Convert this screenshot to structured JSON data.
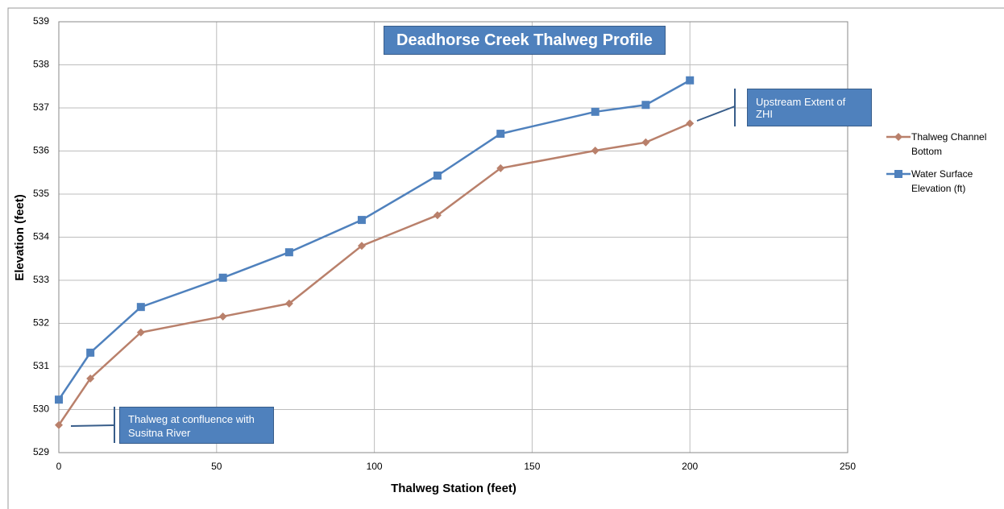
{
  "chart_data": {
    "type": "line",
    "title": "Deadhorse Creek Thalweg Profile",
    "xlabel": "Thalweg Station (feet)",
    "ylabel": "Elevation (feet)",
    "x": [
      0,
      10,
      26,
      52,
      73,
      96,
      120,
      140,
      170,
      186,
      200
    ],
    "series": [
      {
        "name": "Thalweg Channel Bottom",
        "color": "#b9806b",
        "marker": "diamond",
        "values": [
          529.64,
          530.72,
          531.79,
          532.16,
          532.46,
          533.8,
          534.51,
          535.6,
          536.01,
          536.2,
          536.64
        ]
      },
      {
        "name": "Water Surface Elevation (ft)",
        "color": "#4f81bd",
        "marker": "square",
        "values": [
          530.23,
          531.32,
          532.38,
          533.06,
          533.65,
          534.4,
          535.43,
          536.4,
          536.91,
          537.07,
          537.64
        ]
      }
    ],
    "xlim": [
      0,
      250
    ],
    "xticks": [
      0,
      50,
      100,
      150,
      200,
      250
    ],
    "ylim": [
      529,
      539
    ],
    "yticks": [
      529,
      530,
      531,
      532,
      533,
      534,
      535,
      536,
      537,
      538,
      539
    ],
    "grid": true,
    "legend": "right",
    "annotations": [
      "Thalweg at confluence with Susitna River",
      "Upstream Extent of  ZHI"
    ]
  }
}
